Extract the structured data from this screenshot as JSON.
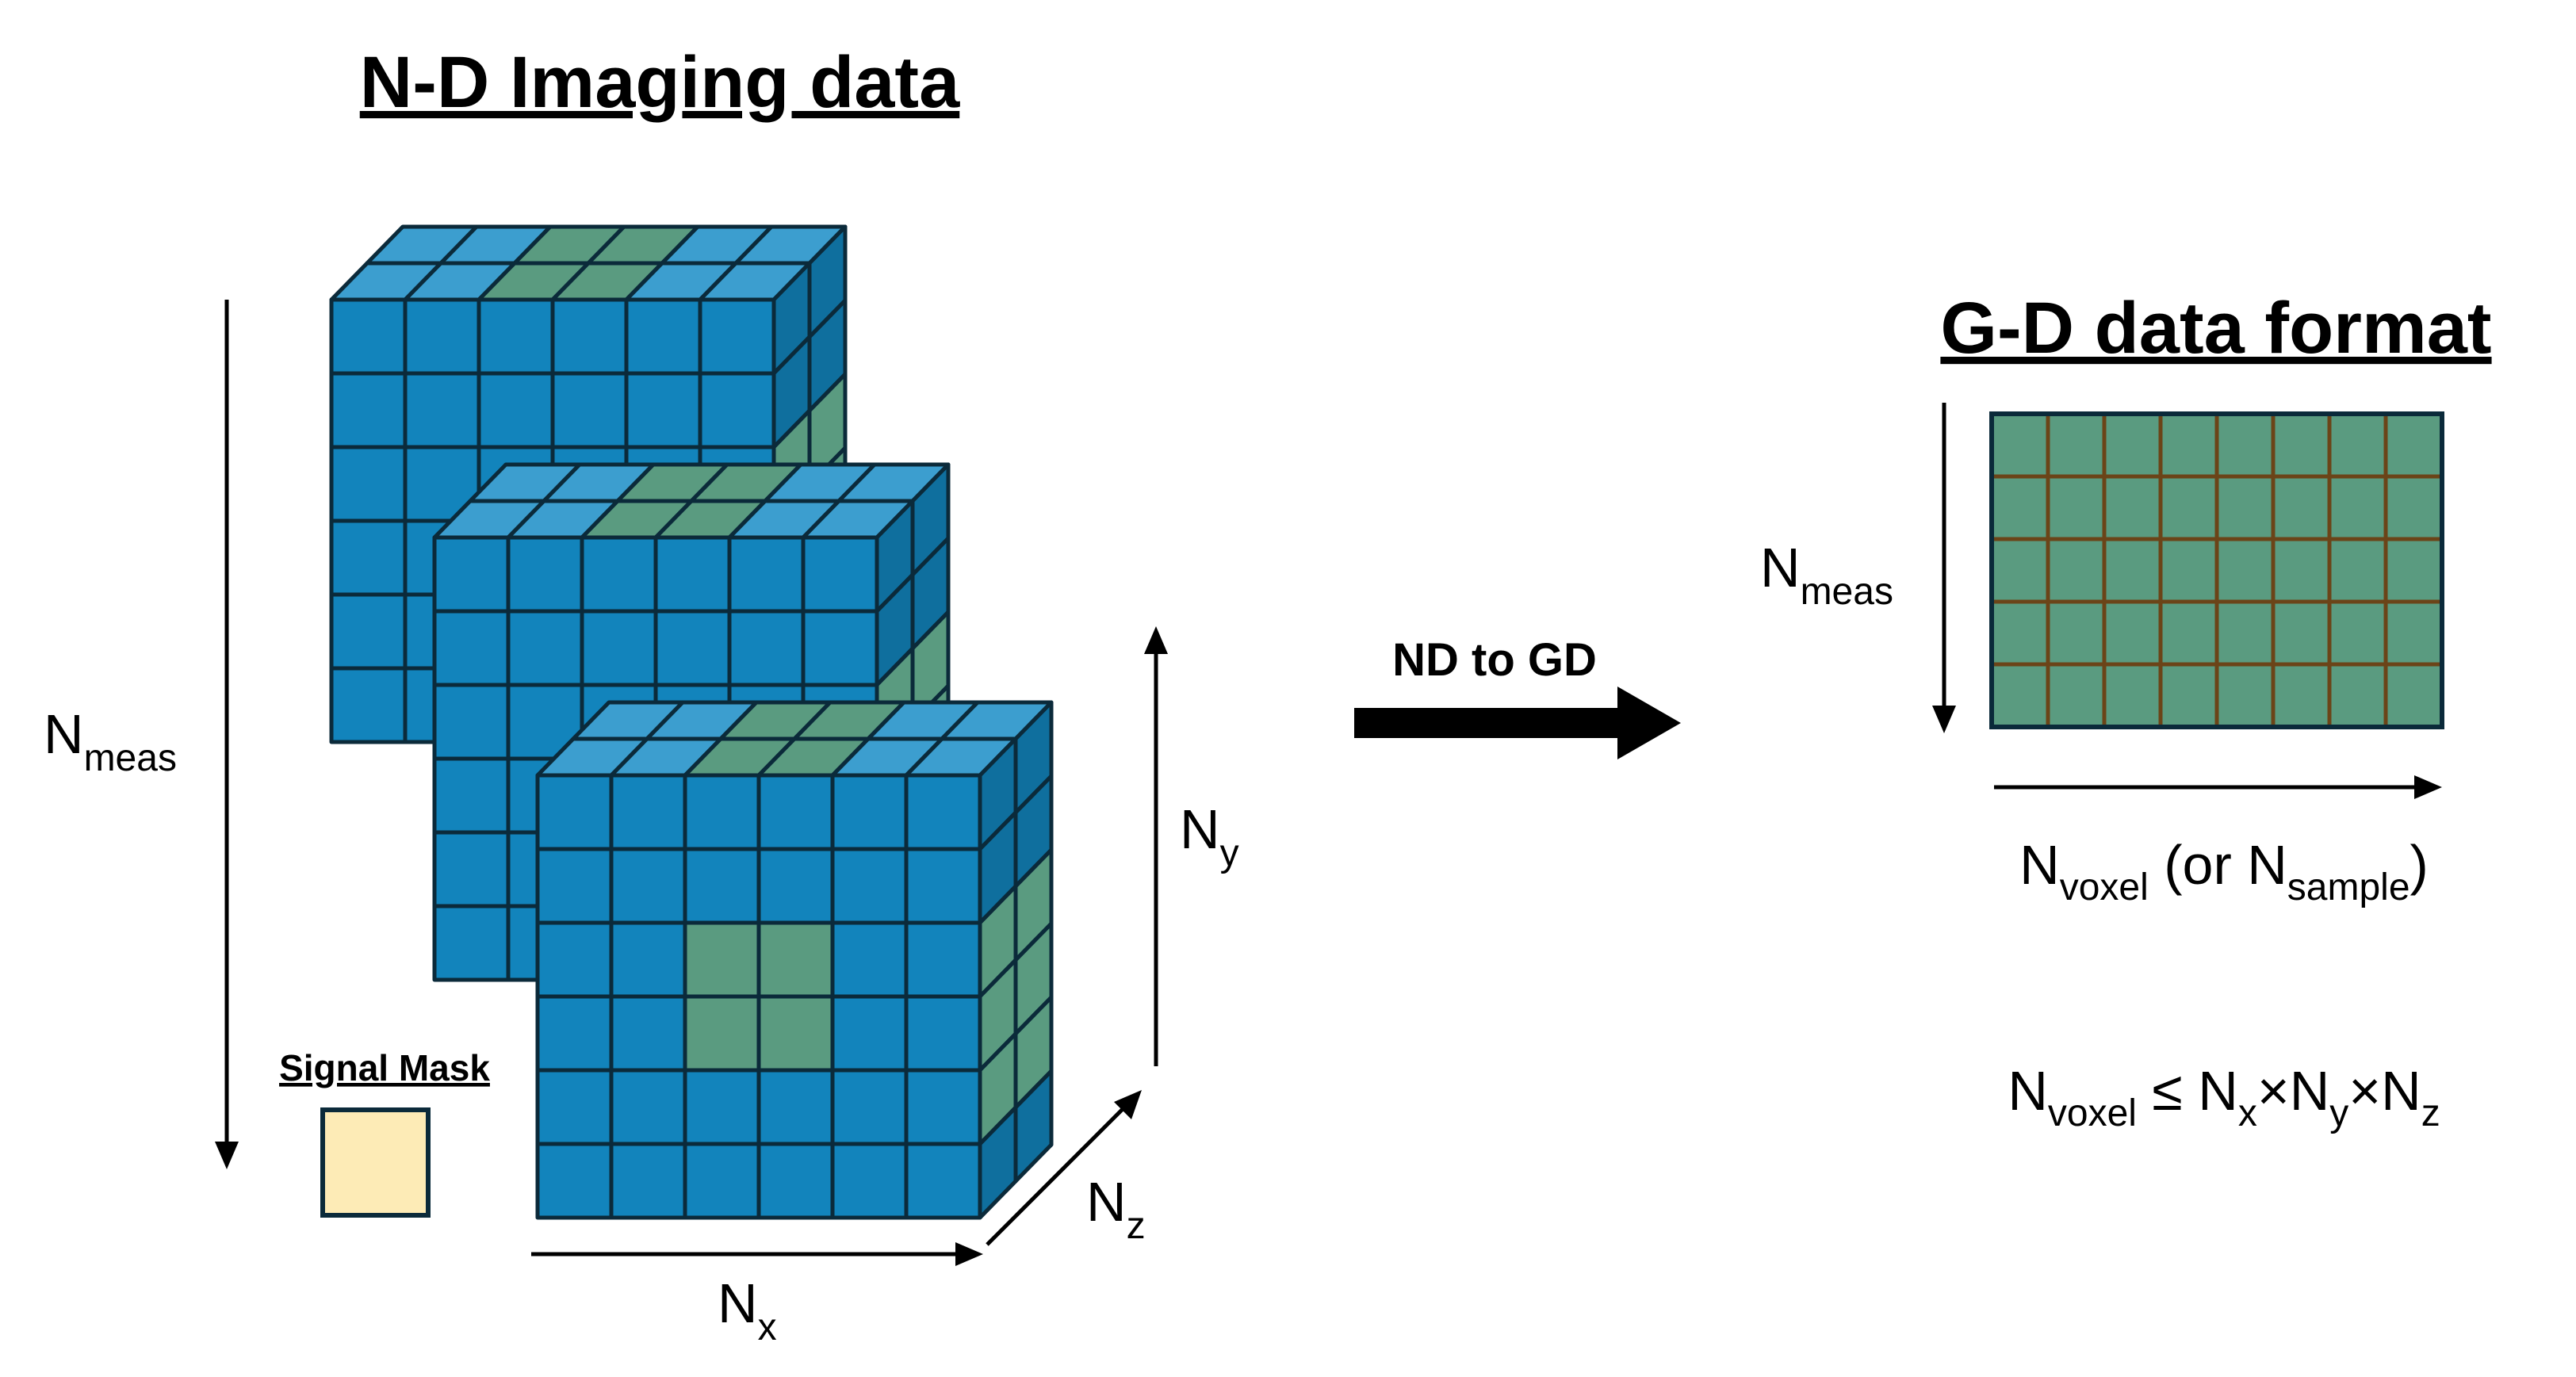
{
  "left_title": "N-D Imaging data",
  "right_title": "G-D data format",
  "transform_label": "ND to GD",
  "legend": {
    "label": "Signal Mask",
    "swatch_color": "#FDEBB6"
  },
  "colors": {
    "voxel_blue": "#1284BC",
    "top_face": "#3C9ECF",
    "side_face": "#0F6F9E",
    "masked_green": "#5A9B80",
    "grid_brown": "#6B4418",
    "edge": "#0B2A3A"
  },
  "labels": {
    "left_nmeas": {
      "main": "N",
      "sub": "meas"
    },
    "ny": {
      "main": "N",
      "sub": "y"
    },
    "nz": {
      "main": "N",
      "sub": "z"
    },
    "nx": {
      "main": "N",
      "sub": "x"
    },
    "right_nmeas": {
      "main": "N",
      "sub": "meas"
    },
    "nvoxel_axis": {
      "n1": "N",
      "sub1": "voxel",
      "mid": " (or N",
      "sub2": "sample",
      "end": ")"
    },
    "inequality": {
      "n1": "N",
      "sub1": "voxel",
      "le": " ≤ N",
      "sx": "x",
      "x1": "×N",
      "sy": "y",
      "x2": "×N",
      "sz": "z"
    }
  },
  "cubes": {
    "count": 3,
    "grid_front": "6 × 6",
    "grid_depth": 2
  },
  "gd_matrix": {
    "rows": 5,
    "cols": 8
  }
}
